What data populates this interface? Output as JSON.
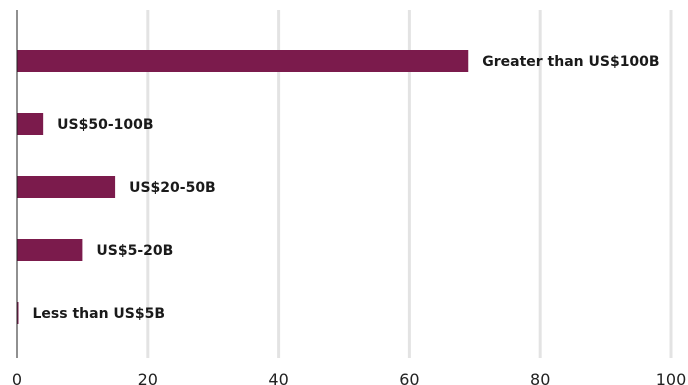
{
  "chart_data": {
    "type": "bar",
    "orientation": "horizontal",
    "categories": [
      "Greater than US$100B",
      "US$50-100B",
      "US$20-50B",
      "US$5-20B",
      "Less than US$5B"
    ],
    "values": [
      69,
      4,
      15,
      10,
      0.2
    ],
    "xlim": [
      0,
      100
    ],
    "xticks": [
      "0",
      "20",
      "40",
      "60",
      "80",
      "100"
    ],
    "grid": "vertical",
    "bar_color": "#7b1b4c",
    "grid_color": "#e3e3e3"
  }
}
